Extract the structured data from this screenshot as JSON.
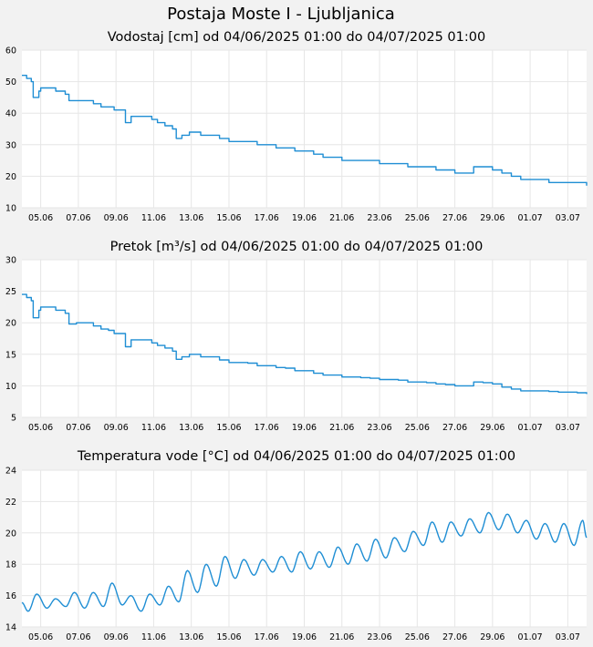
{
  "page": {
    "title": "Postaja Moste I - Ljubljanica"
  },
  "colors": {
    "background": "#f2f2f2",
    "plot_background": "#ffffff",
    "grid": "#e6e6e6",
    "line": "#1f8ed4"
  },
  "chart_data": [
    {
      "type": "line",
      "title": "Vodostaj [cm] od 04/06/2025 01:00 do 04/07/2025 01:00",
      "xlabel": "",
      "ylabel": "",
      "x_range": [
        "04.06",
        "04.07"
      ],
      "ylim": [
        10,
        60
      ],
      "yticks": [
        "10",
        "20",
        "30",
        "40",
        "50",
        "60"
      ],
      "xticks": [
        "05.06",
        "07.06",
        "09.06",
        "11.06",
        "13.06",
        "15.06",
        "17.06",
        "19.06",
        "21.06",
        "23.06",
        "25.06",
        "27.06",
        "29.06",
        "01.07",
        "03.07"
      ],
      "grid": true,
      "series": [
        {
          "x": [
            4.0,
            4.25,
            4.5,
            4.6,
            4.9,
            5.0,
            5.3,
            5.8,
            6.3,
            6.5,
            6.9,
            7.4,
            7.8,
            8.2,
            8.6,
            8.9,
            9.1,
            9.3,
            9.5,
            9.8,
            10.2,
            10.5,
            10.9,
            11.2,
            11.6,
            12.0,
            12.2,
            12.5,
            12.9,
            13.5,
            14.0,
            14.5,
            15.0,
            15.5,
            16.0,
            16.5,
            17.0,
            17.5,
            18.0,
            18.5,
            19.0,
            19.5,
            20.0,
            20.5,
            21.0,
            21.5,
            22.0,
            22.5,
            23.0,
            23.5,
            24.0,
            24.5,
            25.0,
            25.5,
            26.0,
            26.5,
            27.0,
            27.5,
            28.0,
            28.5,
            29.0,
            29.5,
            30.0,
            30.5,
            31.0,
            31.5,
            32.0,
            32.5,
            33.0,
            33.5,
            34.0
          ],
          "values": [
            52,
            51,
            50,
            45,
            47,
            48,
            48,
            47,
            46,
            44,
            44,
            44,
            43,
            42,
            42,
            41,
            41,
            41,
            37,
            39,
            39,
            39,
            38,
            37,
            36,
            35,
            32,
            33,
            34,
            33,
            33,
            32,
            31,
            31,
            31,
            30,
            30,
            29,
            29,
            28,
            28,
            27,
            26,
            26,
            25,
            25,
            25,
            25,
            24,
            24,
            24,
            23,
            23,
            23,
            22,
            22,
            21,
            21,
            23,
            23,
            22,
            21,
            20,
            19,
            19,
            19,
            18,
            18,
            18,
            18,
            17
          ]
        }
      ]
    },
    {
      "type": "line",
      "title": "Pretok [m³/s] od 04/06/2025 01:00 do 04/07/2025 01:00",
      "xlabel": "",
      "ylabel": "",
      "x_range": [
        "04.06",
        "04.07"
      ],
      "ylim": [
        5,
        30
      ],
      "yticks": [
        "5",
        "10",
        "15",
        "20",
        "25",
        "30"
      ],
      "xticks": [
        "05.06",
        "07.06",
        "09.06",
        "11.06",
        "13.06",
        "15.06",
        "17.06",
        "19.06",
        "21.06",
        "23.06",
        "25.06",
        "27.06",
        "29.06",
        "01.07",
        "03.07"
      ],
      "grid": true,
      "series": [
        {
          "x": [
            4.0,
            4.25,
            4.5,
            4.6,
            4.9,
            5.0,
            5.3,
            5.8,
            6.3,
            6.5,
            6.9,
            7.4,
            7.8,
            8.2,
            8.6,
            8.9,
            9.1,
            9.3,
            9.5,
            9.8,
            10.2,
            10.5,
            10.9,
            11.2,
            11.6,
            12.0,
            12.2,
            12.5,
            12.9,
            13.5,
            14.0,
            14.5,
            15.0,
            15.5,
            16.0,
            16.5,
            17.0,
            17.5,
            18.0,
            18.5,
            19.0,
            19.5,
            20.0,
            20.5,
            21.0,
            21.5,
            22.0,
            22.5,
            23.0,
            23.5,
            24.0,
            24.5,
            25.0,
            25.5,
            26.0,
            26.5,
            27.0,
            27.5,
            28.0,
            28.5,
            29.0,
            29.5,
            30.0,
            30.5,
            31.0,
            31.5,
            32.0,
            32.5,
            33.0,
            33.5,
            34.0
          ],
          "values": [
            24.5,
            24.0,
            23.5,
            20.8,
            22.0,
            22.5,
            22.5,
            22.0,
            21.5,
            19.8,
            20.0,
            20.0,
            19.5,
            19.0,
            18.8,
            18.3,
            18.3,
            18.3,
            16.2,
            17.3,
            17.3,
            17.3,
            16.8,
            16.4,
            16.0,
            15.5,
            14.2,
            14.6,
            15.0,
            14.6,
            14.6,
            14.1,
            13.7,
            13.7,
            13.6,
            13.2,
            13.2,
            12.9,
            12.8,
            12.4,
            12.4,
            12.0,
            11.7,
            11.7,
            11.4,
            11.4,
            11.3,
            11.2,
            11.0,
            11.0,
            10.9,
            10.6,
            10.6,
            10.5,
            10.3,
            10.2,
            10.0,
            10.0,
            10.6,
            10.5,
            10.3,
            9.8,
            9.5,
            9.2,
            9.2,
            9.2,
            9.1,
            9.0,
            9.0,
            8.9,
            8.7
          ]
        }
      ]
    },
    {
      "type": "line",
      "title": "Temperatura vode [°C] od 04/06/2025 01:00 do 04/07/2025 01:00",
      "xlabel": "",
      "ylabel": "",
      "x_range": [
        "04.06",
        "04.07"
      ],
      "ylim": [
        14,
        24
      ],
      "yticks": [
        "14",
        "16",
        "18",
        "20",
        "22",
        "24"
      ],
      "xticks": [
        "05.06",
        "07.06",
        "09.06",
        "11.06",
        "13.06",
        "15.06",
        "17.06",
        "19.06",
        "21.06",
        "23.06",
        "25.06",
        "27.06",
        "29.06",
        "01.07",
        "03.07"
      ],
      "grid": true,
      "daily_cycle": {
        "day": [
          4,
          5,
          6,
          7,
          8,
          9,
          10,
          11,
          12,
          13,
          14,
          15,
          16,
          17,
          18,
          19,
          20,
          21,
          22,
          23,
          24,
          25,
          26,
          27,
          28,
          29,
          30,
          31,
          32,
          33,
          34
        ],
        "min": [
          15.0,
          15.2,
          15.3,
          15.2,
          15.3,
          15.4,
          15.0,
          15.4,
          15.6,
          16.2,
          16.6,
          17.1,
          17.3,
          17.5,
          17.5,
          17.7,
          17.8,
          18.0,
          18.2,
          18.4,
          18.8,
          19.2,
          19.4,
          19.8,
          20.0,
          20.2,
          20.0,
          19.6,
          19.4,
          19.2,
          19.6
        ],
        "max": [
          16.1,
          15.8,
          16.2,
          16.2,
          16.8,
          16.0,
          16.1,
          16.6,
          17.6,
          18.0,
          18.5,
          18.3,
          18.3,
          18.5,
          18.8,
          18.8,
          19.1,
          19.3,
          19.6,
          19.7,
          20.1,
          20.7,
          20.7,
          20.9,
          21.3,
          21.2,
          20.8,
          20.6,
          20.6,
          20.8,
          20.7
        ],
        "end_value": 19.7
      }
    }
  ]
}
